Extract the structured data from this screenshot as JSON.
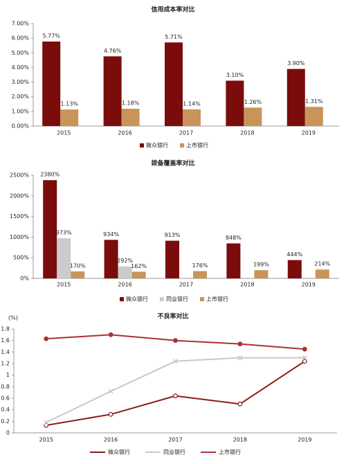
{
  "chart_data": [
    {
      "type": "bar",
      "title": "信用成本率对比",
      "categories": [
        "2015",
        "2016",
        "2017",
        "2018",
        "2019"
      ],
      "series": [
        {
          "name": "微众银行",
          "color": "#7b0c0c",
          "values": [
            5.77,
            4.76,
            5.71,
            3.1,
            3.9
          ],
          "value_labels": [
            "5.77%",
            "4.76%",
            "5.71%",
            "3.10%",
            "3.90%"
          ]
        },
        {
          "name": "上市银行",
          "color": "#c8945a",
          "values": [
            1.13,
            1.18,
            1.14,
            1.26,
            1.31
          ],
          "value_labels": [
            "1.13%",
            "1.18%",
            "1.14%",
            "1.26%",
            "1.31%"
          ]
        }
      ],
      "ylim": [
        0,
        7
      ],
      "yticks": [
        {
          "value": 0,
          "label": "0.00%"
        },
        {
          "value": 1,
          "label": "1.00%"
        },
        {
          "value": 2,
          "label": "2.00%"
        },
        {
          "value": 3,
          "label": "3.00%"
        },
        {
          "value": 4,
          "label": "4.00%"
        },
        {
          "value": 5,
          "label": "5.00%"
        },
        {
          "value": 6,
          "label": "6.00%"
        },
        {
          "value": 7,
          "label": "7.00%"
        }
      ]
    },
    {
      "type": "bar",
      "title": "拨备覆盖率对比",
      "categories": [
        "2015",
        "2016",
        "2017",
        "2018",
        "2019"
      ],
      "series": [
        {
          "name": "微众银行",
          "color": "#7b0c0c",
          "values": [
            2380,
            934,
            913,
            848,
            444
          ],
          "value_labels": [
            "2380%",
            "934%",
            "913%",
            "848%",
            "444%"
          ]
        },
        {
          "name": "同业银行",
          "color": "#cbcbcb",
          "values": [
            973,
            292,
            null,
            null,
            null
          ],
          "value_labels": [
            "973%",
            "292%",
            null,
            null,
            null
          ]
        },
        {
          "name": "上市银行",
          "color": "#c8945a",
          "values": [
            170,
            162,
            176,
            199,
            214
          ],
          "value_labels": [
            "170%",
            "162%",
            "176%",
            "199%",
            "214%"
          ]
        }
      ],
      "ylim": [
        0,
        2500
      ],
      "yticks": [
        {
          "value": 0,
          "label": "0%"
        },
        {
          "value": 500,
          "label": "500%"
        },
        {
          "value": 1000,
          "label": "1000%"
        },
        {
          "value": 1500,
          "label": "1500%"
        },
        {
          "value": 2000,
          "label": "2000%"
        },
        {
          "value": 2500,
          "label": "2500%"
        }
      ]
    },
    {
      "type": "line",
      "title": "不良率对比",
      "ylabel": "(%)",
      "categories": [
        "2015",
        "2016",
        "2017",
        "2018",
        "2019"
      ],
      "series": [
        {
          "name": "微众银行",
          "color": "#8b1a1a",
          "values": [
            0.13,
            0.32,
            0.64,
            0.5,
            1.24
          ]
        },
        {
          "name": "同业银行",
          "color": "#c8c8c8",
          "values": [
            0.18,
            0.72,
            1.24,
            1.3,
            1.3
          ]
        },
        {
          "name": "上市银行",
          "color": "#a93232",
          "values": [
            1.63,
            1.7,
            1.6,
            1.54,
            1.45
          ]
        }
      ],
      "ylim": [
        0,
        1.8
      ],
      "yticks": [
        0,
        0.2,
        0.4,
        0.6,
        0.8,
        1,
        1.2,
        1.4,
        1.6,
        1.8
      ]
    }
  ]
}
